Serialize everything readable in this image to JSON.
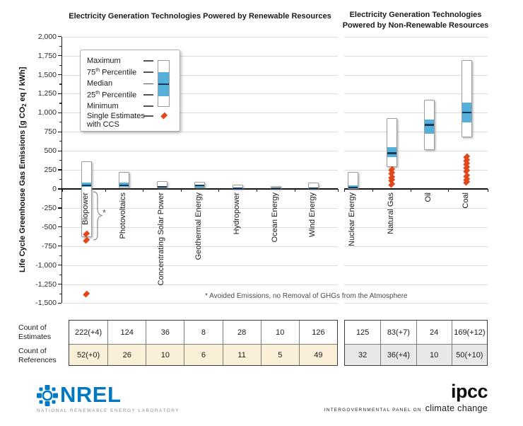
{
  "titles": {
    "left": "Electricity Generation Technologies Powered by Renewable Resources",
    "right": "Electricity Generation Technologies Powered by Non-Renewable Resources"
  },
  "y_axis": {
    "label_pre": "Life Cycle Greenhouse Gas Emissions [g CO",
    "label_sub": "2",
    "label_post": " eq / kWh]",
    "tick_labels": [
      "2,000",
      "1,750",
      "1,500",
      "1,250",
      "1,000",
      "750",
      "500",
      "250",
      "0",
      "-250",
      "-500",
      "-750",
      "-1,000",
      "-1,250",
      "-1,500"
    ]
  },
  "legend": {
    "items": [
      {
        "pre": "Maximum"
      },
      {
        "pre": "75",
        "sup": "th",
        "post": " Percentile"
      },
      {
        "pre": "Median"
      },
      {
        "pre": "25",
        "sup": "th",
        "post": " Percentile"
      },
      {
        "pre": "Minimum"
      },
      {
        "pre": "Single Estimates",
        "line2": "with CCS"
      }
    ]
  },
  "footnote": "* Avoided Emissions, no Removal of GHGs from the Atmosphere",
  "annotation_star": "*",
  "colors": {
    "box_blue": "#54AFD9",
    "median_navy": "#17395C",
    "diamond_orange": "#E0481C",
    "table_cream": "#FAF0D8",
    "table_gray": "#E8E8E8",
    "nrel_blue": "#0079C2"
  },
  "chart_data": {
    "type": "boxplot",
    "title": "Life Cycle Greenhouse Gas Emissions of Electricity Generation Technologies",
    "ylabel": "Life Cycle Greenhouse Gas Emissions [g CO2 eq / kWh]",
    "ylim": [
      -1500,
      2000
    ],
    "ytick_step": 250,
    "grid": true,
    "legend_position": "upper-left",
    "groups": [
      {
        "title": "Electricity Generation Technologies Powered by Renewable Resources",
        "categories": [
          {
            "label": "Biopower",
            "min": -633,
            "p25": 25,
            "median": 50,
            "p75": 85,
            "max": 365,
            "single_estimates_ccs": [
              -590,
              -675,
              -1375
            ]
          },
          {
            "label": "Photovoltaics",
            "min": 5,
            "p25": 26,
            "median": 46,
            "p75": 80,
            "max": 220
          },
          {
            "label": "Concentrating Solar Power",
            "min": 7,
            "p25": 15,
            "median": 25,
            "p75": 40,
            "max": 100
          },
          {
            "label": "Geothermal Energy",
            "min": 6,
            "p25": 20,
            "median": 45,
            "p75": 57,
            "max": 90
          },
          {
            "label": "Hydropower",
            "min": 0,
            "p25": 3,
            "median": 5,
            "p75": 10,
            "max": 60
          },
          {
            "label": "Ocean Energy",
            "min": 2,
            "p25": 6,
            "median": 8,
            "p75": 10,
            "max": 35
          },
          {
            "label": "Wind Energy",
            "min": 2,
            "p25": 8,
            "median": 12,
            "p75": 22,
            "max": 81
          }
        ]
      },
      {
        "title": "Electricity Generation Technologies Powered by Non-Renewable Resources",
        "categories": [
          {
            "label": "Nuclear Energy",
            "min": 1,
            "p25": 9,
            "median": 20,
            "p75": 45,
            "max": 220
          },
          {
            "label": "Natural Gas",
            "min": 290,
            "p25": 422,
            "median": 469,
            "p75": 548,
            "max": 930,
            "single_estimates_ccs": [
              255,
              207,
              150,
              115,
              65
            ]
          },
          {
            "label": "Oil",
            "min": 510,
            "p25": 722,
            "median": 840,
            "p75": 907,
            "max": 1170
          },
          {
            "label": "Coal",
            "min": 675,
            "p25": 877,
            "median": 1001,
            "p75": 1130,
            "max": 1690,
            "single_estimates_ccs": [
              420,
              380,
              330,
              280,
              240,
              170,
              130,
              90
            ]
          }
        ]
      }
    ]
  },
  "table": {
    "row_labels": [
      "Count of Estimates",
      "Count of References"
    ],
    "sections": [
      {
        "name": "renewable",
        "estimates": [
          "222(+4)",
          "124",
          "36",
          "8",
          "28",
          "10",
          "126"
        ],
        "references": [
          "52(+0)",
          "26",
          "10",
          "6",
          "11",
          "5",
          "49"
        ]
      },
      {
        "name": "non-renewable",
        "estimates": [
          "125",
          "83(+7)",
          "24",
          "169(+12)"
        ],
        "references": [
          "32",
          "36(+4)",
          "10",
          "50(+10)"
        ]
      }
    ]
  },
  "logos": {
    "nrel": {
      "name": "NREL",
      "tagline": "NATIONAL RENEWABLE ENERGY LABORATORY"
    },
    "ipcc": {
      "name": "ipcc",
      "tagline_small": "INTERGOVERNMENTAL PANEL ON",
      "tagline_big": "climate change"
    }
  }
}
